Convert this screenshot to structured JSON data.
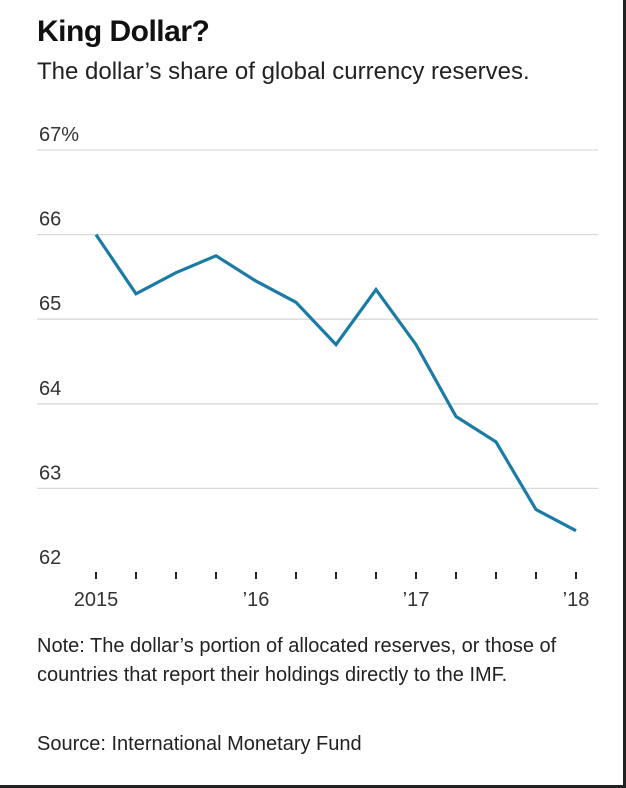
{
  "title": "King Dollar?",
  "subtitle": "The dollar’s share of global currency reserves.",
  "note": "Note: The dollar’s portion of allocated reserves, or those of countries that report their holdings directly to the IMF.",
  "source": "Source: International Monetary Fund",
  "colors": {
    "line": "#1b7ba6",
    "grid": "#d9d9d9",
    "axis": "#222222"
  },
  "chart_data": {
    "type": "line",
    "title": "King Dollar?",
    "xlabel": "",
    "ylabel": "",
    "ylim": [
      62,
      67
    ],
    "grid": true,
    "y_ticks": [
      {
        "value": 67,
        "label": "67%"
      },
      {
        "value": 66,
        "label": "66"
      },
      {
        "value": 65,
        "label": "65"
      },
      {
        "value": 64,
        "label": "64"
      },
      {
        "value": 63,
        "label": "63"
      },
      {
        "value": 62,
        "label": "62"
      }
    ],
    "x_ticks": [
      {
        "index": 0,
        "label": "2015"
      },
      {
        "index": 4,
        "label": "’16"
      },
      {
        "index": 8,
        "label": "’17"
      },
      {
        "index": 12,
        "label": "’18"
      }
    ],
    "series": [
      {
        "name": "Dollar share of global currency reserves",
        "x": [
          "2015 Q1",
          "2015 Q2",
          "2015 Q3",
          "2015 Q4",
          "2016 Q1",
          "2016 Q2",
          "2016 Q3",
          "2016 Q4",
          "2017 Q1",
          "2017 Q2",
          "2017 Q3",
          "2017 Q4",
          "2018 Q1"
        ],
        "values": [
          66.0,
          65.3,
          65.55,
          65.75,
          65.45,
          65.2,
          64.7,
          65.35,
          64.7,
          63.85,
          63.55,
          62.75,
          62.5
        ]
      }
    ]
  }
}
